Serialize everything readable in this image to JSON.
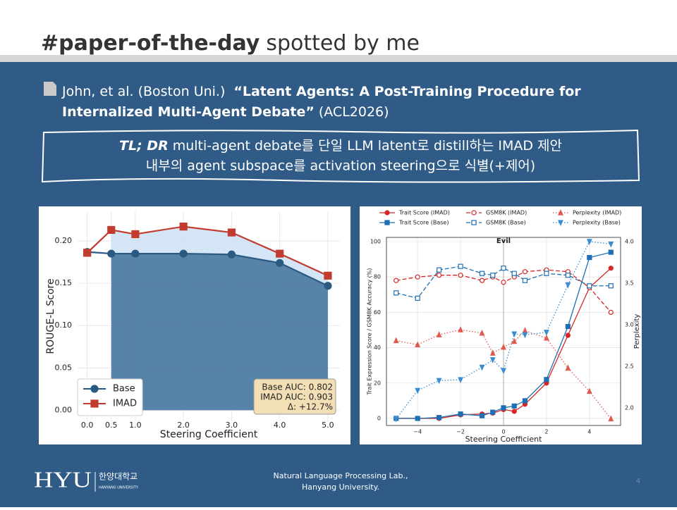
{
  "header": {
    "tag": "#paper-of-the-day",
    "rest": "spotted by me"
  },
  "citation": {
    "authors": "John, et al. (Boston Uni.)",
    "title": [
      "“Latent Agents: A Post-Training Procedure for",
      "Internalized Multi-Agent Debate”"
    ],
    "venue": "(ACL2026)"
  },
  "tldr": {
    "label": "TL; DR",
    "line1": "multi-agent debate를 단일 LLM latent로 distill하는 IMAD 제안",
    "line2": "내부의 agent subspace를 activation steering으로 식별(+제어)"
  },
  "chart_data": [
    {
      "type": "line",
      "x_label": "Steering Coefficient",
      "y_label": "ROUGE-L Score",
      "grid": true,
      "frame": false,
      "legend": "lower left",
      "x": [
        0.0,
        0.5,
        1.0,
        2.0,
        3.0,
        4.0,
        5.0
      ],
      "series": [
        {
          "name": "Base",
          "color": "#2a5a82",
          "fill": "#4f7ca3",
          "marker": "circle",
          "filled": true,
          "linestyle": "solid",
          "values": [
            0.187,
            0.185,
            0.185,
            0.185,
            0.184,
            0.174,
            0.147
          ]
        },
        {
          "name": "IMAD",
          "color": "#c23b30",
          "fill": "#cfe3f5",
          "marker": "square",
          "filled": true,
          "linestyle": "solid",
          "values": [
            0.186,
            0.213,
            0.208,
            0.217,
            0.21,
            0.185,
            0.159
          ]
        }
      ],
      "annotations": [
        "Base AUC: 0.802",
        "IMAD AUC: 0.903",
        "Δ: +12.7%"
      ],
      "xlim": [
        -0.2,
        5.25
      ],
      "ylim": [
        -0.013,
        0.235
      ],
      "xticks": [
        {
          "value": 0,
          "label": "0.0"
        },
        {
          "value": 0.5,
          "label": "0.5"
        },
        {
          "value": 1,
          "label": "1.0"
        },
        {
          "value": 2,
          "label": "2.0"
        },
        {
          "value": 3,
          "label": "3.0"
        },
        {
          "value": 4,
          "label": "4.0"
        },
        {
          "value": 5,
          "label": "5.0"
        }
      ],
      "yticks": [
        {
          "value": 0,
          "label": "0.00"
        },
        {
          "value": 0.05,
          "label": "0.05"
        },
        {
          "value": 0.1,
          "label": "0.10"
        },
        {
          "value": 0.15,
          "label": "0.15"
        },
        {
          "value": 0.2,
          "label": "0.20"
        }
      ]
    },
    {
      "type": "line",
      "title": "Evil",
      "x_label": "Steering Coefficient",
      "y_label": "Trait Expression Score / GSM8K Accuracy (%)",
      "y2_label": "Perplexity",
      "grid": true,
      "frame": true,
      "legend": "top",
      "x": [
        -5,
        -4,
        -3,
        -2,
        -1,
        -0.5,
        0,
        0.5,
        1,
        2,
        3,
        4,
        5
      ],
      "series": [
        {
          "name": "Trait Score (IMAD)",
          "color": "#d62728",
          "marker": "circle",
          "filled": true,
          "linestyle": "solid",
          "values": [
            0,
            0,
            0,
            2,
            2.5,
            3,
            5,
            4,
            8,
            20,
            47,
            74,
            85
          ]
        },
        {
          "name": "Trait Score (Base)",
          "color": "#1f6fb4",
          "marker": "square",
          "filled": true,
          "linestyle": "solid",
          "values": [
            0,
            0,
            0.5,
            2.5,
            1.5,
            3.5,
            6,
            7,
            10,
            22,
            52,
            91,
            94
          ]
        },
        {
          "name": "GSM8K (IMAD)",
          "color": "#d62728",
          "marker": "circle",
          "filled": false,
          "linestyle": "dashed",
          "values": [
            78,
            80,
            81,
            81,
            78,
            80,
            77,
            80,
            83,
            84,
            83,
            74,
            60
          ]
        },
        {
          "name": "GSM8K (Base)",
          "color": "#1f6fb4",
          "marker": "square",
          "filled": false,
          "linestyle": "dashed",
          "values": [
            71,
            68,
            84,
            86,
            82,
            81,
            85,
            82,
            78,
            82,
            81,
            75,
            75
          ]
        },
        {
          "name": "Perplexity (IMAD)",
          "color": "#e05a50",
          "marker": "triangle-up",
          "filled": true,
          "linestyle": "dotted",
          "axis": "y2",
          "values": [
            2.81,
            2.76,
            2.88,
            2.94,
            2.9,
            2.66,
            2.73,
            2.8,
            2.93,
            2.84,
            2.48,
            2.2,
            1.87
          ]
        },
        {
          "name": "Perplexity (Base)",
          "color": "#3a8cd0",
          "marker": "triangle-down",
          "filled": true,
          "linestyle": "dotted",
          "axis": "y2",
          "values": [
            1.87,
            2.21,
            2.33,
            2.34,
            2.49,
            2.58,
            2.45,
            2.89,
            2.88,
            2.91,
            3.48,
            4.0,
            3.97
          ]
        }
      ],
      "xlim": [
        -5.45,
        5.45
      ],
      "ylim": [
        -4,
        102.4
      ],
      "y2lim": [
        1.79,
        4.05
      ],
      "xticks": [
        {
          "value": -4,
          "label": "−4"
        },
        {
          "value": -2,
          "label": "−2"
        },
        0,
        2,
        4
      ],
      "yticks": [
        0,
        20,
        40,
        60,
        80,
        100
      ],
      "y2ticks": [
        {
          "value": 2,
          "label": "2.0"
        },
        2.5,
        {
          "value": 3,
          "label": "3.0"
        },
        3.5,
        {
          "value": 4,
          "label": "4.0"
        }
      ]
    }
  ],
  "footer": {
    "logo": "HYU",
    "logo_kr": "한양대학교",
    "logo_en": "HANYANG UNIVERSITY",
    "lab": [
      "Natural Language Processing Lab.,",
      "Hanyang University."
    ],
    "page": "4"
  }
}
